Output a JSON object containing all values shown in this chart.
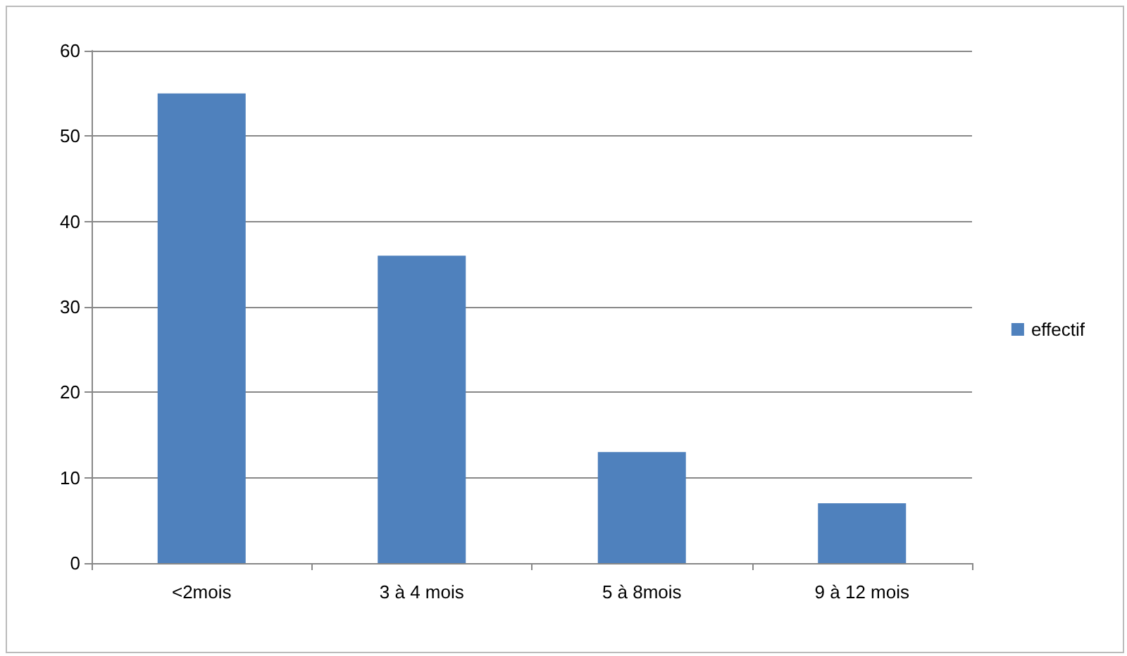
{
  "chart_data": {
    "type": "bar",
    "categories": [
      "<2mois",
      "3 à 4 mois",
      "5 à 8mois",
      "9 à 12 mois"
    ],
    "series": [
      {
        "name": "effectif",
        "color": "#4f81bd",
        "values": [
          55,
          36,
          13,
          7
        ]
      }
    ],
    "ylim": [
      0,
      60
    ],
    "yticks": [
      0,
      10,
      20,
      30,
      40,
      50,
      60
    ],
    "grid": "y",
    "legend": "right"
  }
}
